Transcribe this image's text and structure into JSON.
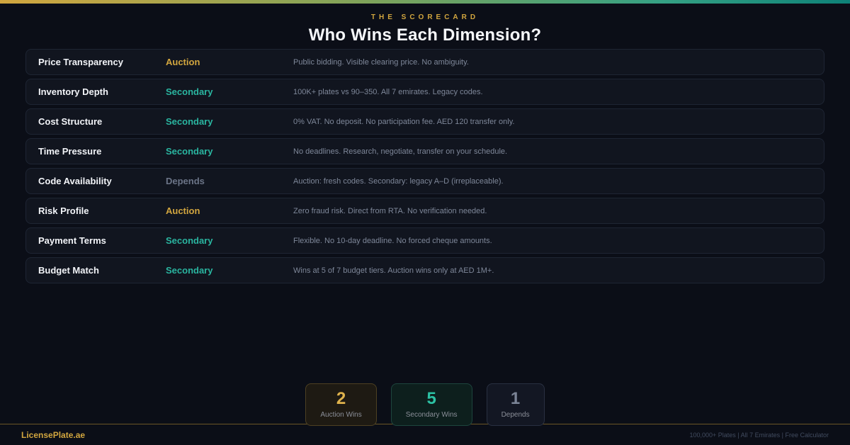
{
  "header": {
    "eyebrow": "THE SCORECARD",
    "title": "Who Wins Each Dimension?"
  },
  "rows": [
    {
      "dimension": "Price Transparency",
      "winner": "Auction",
      "winner_type": "auction",
      "description": "Public bidding. Visible clearing price. No ambiguity."
    },
    {
      "dimension": "Inventory Depth",
      "winner": "Secondary",
      "winner_type": "secondary",
      "description": "100K+ plates vs 90–350. All 7 emirates. Legacy codes."
    },
    {
      "dimension": "Cost Structure",
      "winner": "Secondary",
      "winner_type": "secondary",
      "description": "0% VAT. No deposit. No participation fee. AED 120 transfer only."
    },
    {
      "dimension": "Time Pressure",
      "winner": "Secondary",
      "winner_type": "secondary",
      "description": "No deadlines. Research, negotiate, transfer on your schedule."
    },
    {
      "dimension": "Code Availability",
      "winner": "Depends",
      "winner_type": "depends",
      "description": "Auction: fresh codes. Secondary: legacy A–D (irreplaceable)."
    },
    {
      "dimension": "Risk Profile",
      "winner": "Auction",
      "winner_type": "auction",
      "description": "Zero fraud risk. Direct from RTA. No verification needed."
    },
    {
      "dimension": "Payment Terms",
      "winner": "Secondary",
      "winner_type": "secondary",
      "description": "Flexible. No 10-day deadline. No forced cheque amounts."
    },
    {
      "dimension": "Budget Match",
      "winner": "Secondary",
      "winner_type": "secondary",
      "description": "Wins at 5 of 7 budget tiers. Auction wins only at AED 1M+."
    }
  ],
  "stats": [
    {
      "value": "2",
      "label": "Auction Wins",
      "type": "auction"
    },
    {
      "value": "5",
      "label": "Secondary Wins",
      "type": "secondary"
    },
    {
      "value": "1",
      "label": "Depends",
      "type": "depends"
    }
  ],
  "footer": {
    "brand": "LicensePlate.ae",
    "tagline": "100,000+ Plates | All 7 Emirates | Free Calculator"
  },
  "colors": {
    "gold": "#d2a63f",
    "teal": "#2ab5a0",
    "gray": "#6b7487"
  }
}
